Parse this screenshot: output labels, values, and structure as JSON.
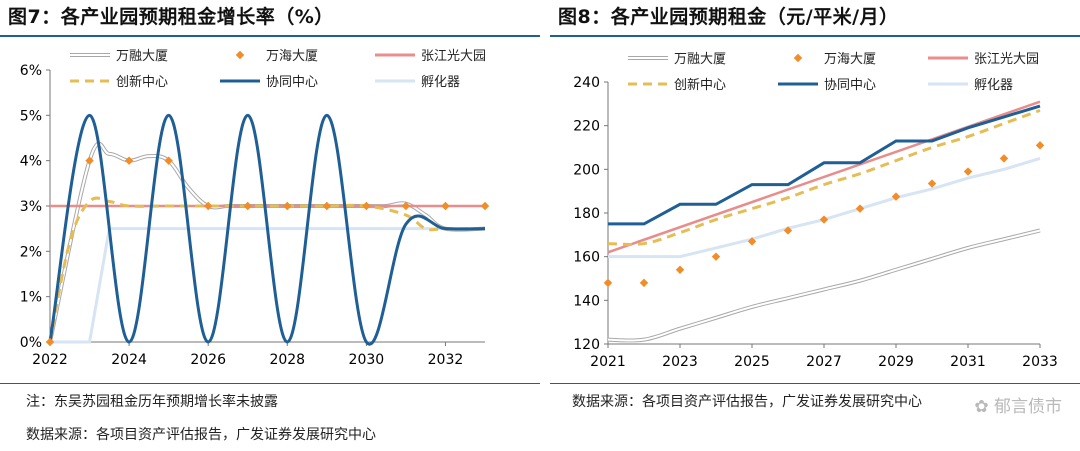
{
  "left": {
    "title": "图7：各产业园预期租金增长率（%）",
    "note": "注：东吴苏园租金历年预期增长率未披露",
    "source": "数据来源：各项目资产评估报告，广发证券发展研究中心"
  },
  "right": {
    "title": "图8：各产业园预期租金（元/平米/月）",
    "source": "数据来源：各项目资产评估报告，广发证券发展研究中心"
  },
  "watermark": "郁言债市",
  "colors": {
    "wanrong": "#b4b4b4",
    "wanhai": "#f28c28",
    "zhangjiang": "#e88c8c",
    "chuangxin": "#e6bd55",
    "xietong": "#1f5f96",
    "fuhua": "#d6e4f3",
    "rule": "#1f5f96"
  },
  "chart_data": [
    {
      "type": "line",
      "title": "各产业园预期租金增长率（%）",
      "xlim": [
        2022,
        2033
      ],
      "ylim": [
        0,
        6
      ],
      "xticks": [
        "2022",
        "2024",
        "2026",
        "2028",
        "2030",
        "2032"
      ],
      "yticks": [
        "0%",
        "1%",
        "2%",
        "3%",
        "4%",
        "5%",
        "6%"
      ],
      "legend": "top",
      "grid": false,
      "series": [
        {
          "name": "万融大厦",
          "style": "double",
          "color": "wanrong",
          "x": [
            2022,
            2023,
            2023.5,
            2024,
            2024.5,
            2025,
            2025.5,
            2026,
            2026.5,
            2027,
            2028,
            2029,
            2030,
            2030.5,
            2031,
            2031.5,
            2032,
            2033
          ],
          "y": [
            0,
            4,
            4.15,
            4.0,
            4.1,
            4.0,
            3.4,
            3.0,
            3.0,
            3.0,
            3.0,
            3.0,
            3.0,
            3.0,
            3.05,
            2.8,
            2.5,
            2.5
          ]
        },
        {
          "name": "万海大厦",
          "style": "marker",
          "color": "wanhai",
          "x": [
            2022,
            2023,
            2024,
            2025,
            2026,
            2027,
            2028,
            2029,
            2030,
            2031,
            2032,
            2033
          ],
          "y": [
            0,
            4,
            4,
            4,
            3,
            3,
            3,
            3,
            3,
            3,
            3,
            3
          ]
        },
        {
          "name": "张江光大园",
          "style": "solid",
          "color": "zhangjiang",
          "x": [
            2022,
            2033
          ],
          "y": [
            3,
            3
          ]
        },
        {
          "name": "创新中心",
          "style": "dashed",
          "color": "chuangxin",
          "x": [
            2022,
            2022.5,
            2023,
            2023.5,
            2024,
            2025,
            2026,
            2027,
            2028,
            2029,
            2030,
            2031,
            2031.5,
            2032,
            2033
          ],
          "y": [
            0,
            2.2,
            3.1,
            3.1,
            3.0,
            3.0,
            3.0,
            3.0,
            3.0,
            3.0,
            3.0,
            2.8,
            2.5,
            2.5,
            2.5
          ]
        },
        {
          "name": "协同中心",
          "style": "solid",
          "color": "xietong",
          "x": [
            2022,
            2023,
            2024,
            2025,
            2026,
            2027,
            2028,
            2029,
            2030,
            2031,
            2032,
            2033
          ],
          "y": [
            0,
            5,
            0,
            5,
            0,
            5,
            0,
            5,
            0,
            2.6,
            2.5,
            2.5
          ]
        },
        {
          "name": "孵化器",
          "style": "solid",
          "color": "fuhua",
          "x": [
            2022,
            2023,
            2023.5,
            2024,
            2033
          ],
          "y": [
            0,
            0,
            2.5,
            2.5,
            2.5
          ]
        }
      ]
    },
    {
      "type": "line",
      "title": "各产业园预期租金（元/平米/月）",
      "xlim": [
        2021,
        2033
      ],
      "ylim": [
        120,
        240
      ],
      "xticks": [
        "2021",
        "2023",
        "2025",
        "2027",
        "2029",
        "2031",
        "2033"
      ],
      "yticks": [
        "120",
        "140",
        "160",
        "180",
        "200",
        "220",
        "240"
      ],
      "legend": "top",
      "grid": false,
      "series": [
        {
          "name": "万融大厦",
          "style": "double",
          "color": "wanrong",
          "x": [
            2021,
            2022,
            2023,
            2024,
            2025,
            2026,
            2027,
            2028,
            2029,
            2030,
            2031,
            2032,
            2033
          ],
          "y": [
            122,
            122,
            127,
            132,
            137,
            141,
            145,
            149,
            154,
            159,
            164,
            168,
            172
          ]
        },
        {
          "name": "万海大厦",
          "style": "marker",
          "color": "wanhai",
          "x": [
            2021,
            2022,
            2023,
            2024,
            2025,
            2026,
            2027,
            2028,
            2029,
            2030,
            2031,
            2032,
            2033
          ],
          "y": [
            148,
            148,
            154,
            160,
            167,
            172,
            177,
            182,
            187.5,
            193.5,
            199,
            205,
            211
          ]
        },
        {
          "name": "张江光大园",
          "style": "solid",
          "color": "zhangjiang",
          "x": [
            2021,
            2033
          ],
          "y": [
            162,
            231
          ]
        },
        {
          "name": "创新中心",
          "style": "dashed",
          "color": "chuangxin",
          "x": [
            2021,
            2022,
            2023,
            2024,
            2025,
            2026,
            2027,
            2028,
            2029,
            2030,
            2031,
            2032,
            2033
          ],
          "y": [
            166,
            166,
            171,
            177,
            182,
            187,
            193,
            198,
            204,
            210,
            215,
            221,
            227
          ]
        },
        {
          "name": "协同中心",
          "style": "solid",
          "color": "xietong",
          "x": [
            2021,
            2022,
            2023,
            2024,
            2025,
            2026,
            2027,
            2028,
            2029,
            2030,
            2031,
            2032,
            2033
          ],
          "y": [
            175,
            175,
            184,
            184,
            193,
            193,
            203,
            203,
            213,
            213,
            219,
            224,
            229
          ]
        },
        {
          "name": "孵化器",
          "style": "solid",
          "color": "fuhua",
          "x": [
            2021,
            2022,
            2023,
            2024,
            2025,
            2026,
            2027,
            2028,
            2029,
            2030,
            2031,
            2032,
            2033
          ],
          "y": [
            160,
            160,
            160,
            164,
            168,
            173,
            177,
            182,
            187,
            191,
            196,
            200,
            205
          ]
        }
      ]
    }
  ]
}
